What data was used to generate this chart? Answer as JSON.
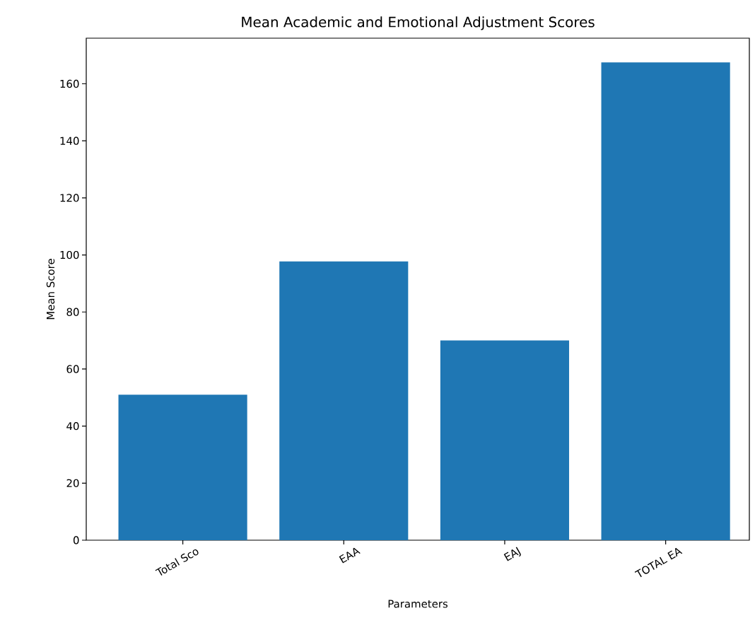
{
  "chart_data": {
    "type": "bar",
    "title": "Mean Academic and Emotional Adjustment Scores",
    "xlabel": "Parameters",
    "ylabel": "Mean Score",
    "categories": [
      "Total Sco",
      "EAA",
      "EAJ",
      "TOTAL EA"
    ],
    "values": [
      51,
      97.7,
      70,
      167.5
    ],
    "color": "#1f77b4",
    "ylim": [
      0,
      176
    ],
    "yticks": [
      0,
      20,
      40,
      60,
      80,
      100,
      120,
      140,
      160
    ],
    "grid": false
  }
}
